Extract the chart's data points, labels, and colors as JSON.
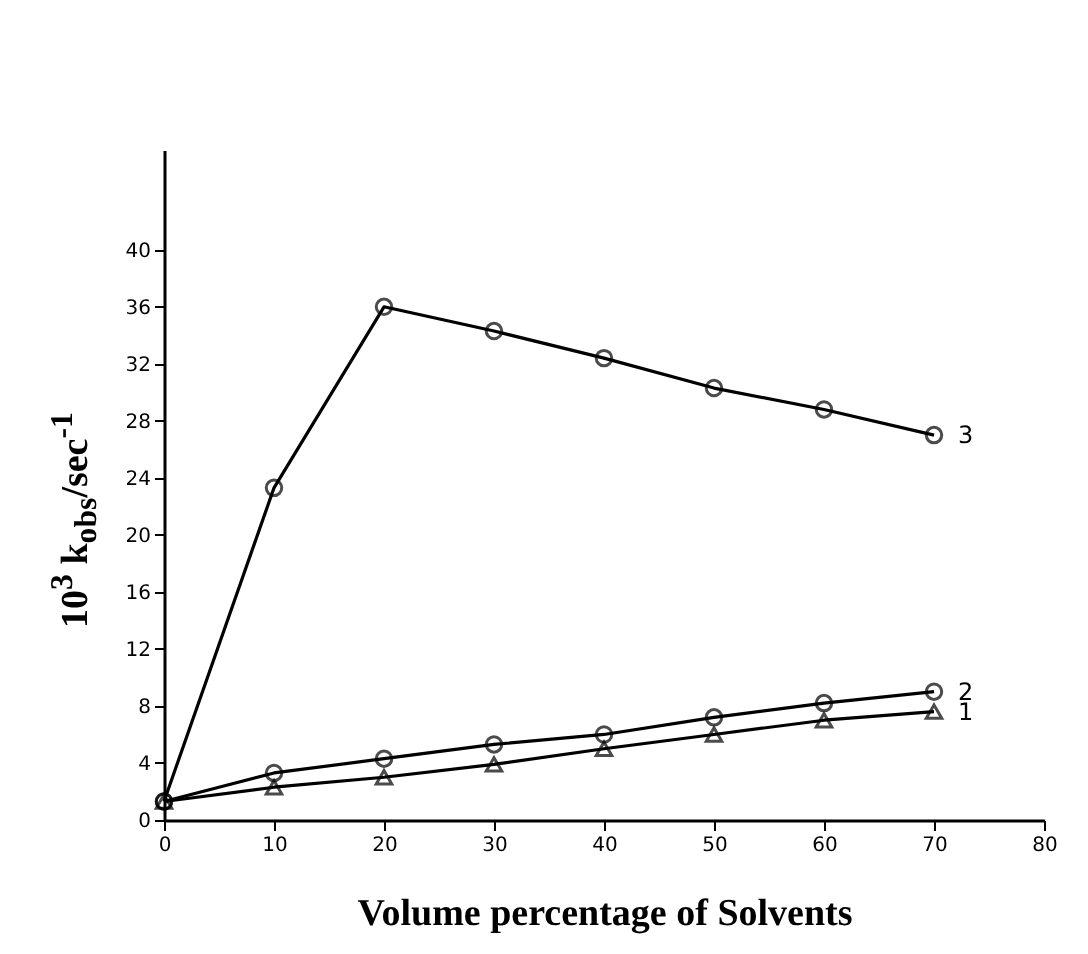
{
  "chart_data": {
    "type": "line",
    "xlabel": "Volume percentage of  Solvents",
    "ylabel": "10$^{3}$ k$_{obs}$/sec$^{-1}$",
    "x": [
      0,
      10,
      20,
      30,
      40,
      50,
      60,
      70
    ],
    "series": [
      {
        "name": "3",
        "color": "#000000",
        "marker": "circle",
        "values": [
          1.3,
          23.3,
          36,
          34.3,
          32.4,
          30.3,
          28.8,
          27.0
        ]
      },
      {
        "name": "2",
        "color": "#000000",
        "marker": "circle",
        "values": [
          1.3,
          3.3,
          4.3,
          5.3,
          6.0,
          7.2,
          8.2,
          9.0
        ]
      },
      {
        "name": "1",
        "color": "#000000",
        "marker": "triangle",
        "values": [
          1.3,
          2.3,
          3.0,
          3.9,
          5.0,
          6.0,
          7.0,
          7.6
        ]
      }
    ],
    "xlim": [
      0,
      80
    ],
    "xticks": [
      0,
      10,
      20,
      30,
      40,
      50,
      60,
      70,
      80
    ],
    "ylim": [
      0,
      47
    ],
    "yticks": [
      0,
      4,
      8,
      12,
      16,
      20,
      24,
      28,
      32,
      36,
      40
    ],
    "grid": false,
    "legend": false,
    "line_style": "solid"
  }
}
